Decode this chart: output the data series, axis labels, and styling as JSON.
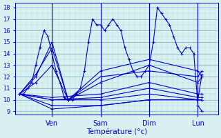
{
  "title": "",
  "xlabel": "Température (°c)",
  "bg_color": "#d8f0f0",
  "line_color": "#0000cc",
  "grid_color_minor": "#b8dde0",
  "grid_color_major": "#88bbcc",
  "yticks": [
    9,
    10,
    11,
    12,
    13,
    14,
    15,
    16,
    17,
    18
  ],
  "ylim": [
    8.7,
    18.4
  ],
  "xlim": [
    -2,
    98
  ],
  "xtick_positions": [
    16,
    40,
    64,
    88
  ],
  "xtick_labels": [
    "Ven",
    "Sam",
    "Dim",
    "Lun"
  ],
  "lines": [
    [
      0,
      10.5,
      2,
      10.5,
      4,
      11.0,
      6,
      11.5,
      8,
      13.0,
      10,
      14.5,
      12,
      16.0,
      14,
      15.5,
      16,
      14.0,
      18,
      12.5,
      20,
      11.5,
      22,
      10.2,
      24,
      10.0,
      26,
      10.0,
      28,
      10.5,
      30,
      11.0,
      32,
      12.5,
      34,
      15.0,
      36,
      17.0,
      38,
      16.5,
      40,
      16.5,
      42,
      16.0,
      44,
      16.5,
      46,
      17.0,
      48,
      16.5,
      50,
      16.0,
      52,
      14.5,
      54,
      13.5,
      56,
      12.5,
      58,
      12.0,
      60,
      12.0,
      62,
      12.5,
      64,
      13.0,
      66,
      15.0,
      68,
      18.0,
      70,
      17.5,
      72,
      17.0,
      74,
      16.5,
      76,
      15.5,
      78,
      14.5,
      80,
      14.0,
      82,
      14.5,
      84,
      14.5,
      86,
      14.0,
      88,
      9.5,
      90,
      9.0
    ],
    [
      0,
      10.5,
      16,
      10.2,
      40,
      10.5,
      64,
      11.5,
      88,
      10.5,
      90,
      10.5
    ],
    [
      0,
      10.5,
      16,
      10.0,
      40,
      10.2,
      64,
      11.0,
      88,
      10.2,
      90,
      10.2
    ],
    [
      0,
      10.5,
      16,
      10.0,
      40,
      10.0,
      64,
      10.5,
      88,
      10.0,
      90,
      10.0
    ],
    [
      0,
      10.5,
      16,
      9.5,
      40,
      9.5,
      64,
      10.0,
      88,
      10.0,
      90,
      10.0
    ],
    [
      0,
      10.5,
      16,
      9.2,
      40,
      9.5,
      64,
      10.0,
      88,
      10.0,
      90,
      12.2
    ],
    [
      0,
      10.5,
      8,
      12.2,
      16,
      14.5,
      24,
      10.0,
      40,
      11.5,
      64,
      13.0,
      88,
      11.5,
      90,
      12.0
    ],
    [
      0,
      10.5,
      8,
      11.5,
      16,
      13.0,
      24,
      10.0,
      40,
      12.0,
      64,
      12.5,
      88,
      12.0,
      90,
      12.5
    ],
    [
      0,
      10.5,
      8,
      12.0,
      16,
      15.0,
      24,
      10.0,
      40,
      12.5,
      64,
      13.5,
      88,
      12.5,
      90,
      12.0
    ]
  ]
}
